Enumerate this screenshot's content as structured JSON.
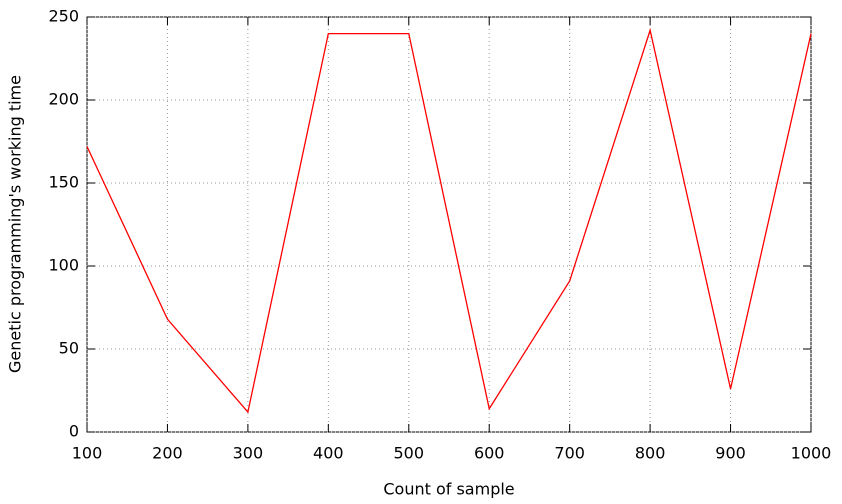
{
  "chart_data": {
    "type": "line",
    "x_label": "Count of sample",
    "y_label": "Genetic programming's working time",
    "x": [
      100,
      200,
      300,
      400,
      500,
      600,
      700,
      800,
      900,
      1000
    ],
    "series": [
      {
        "color": "#ff0000",
        "values": [
          172,
          68,
          12,
          240,
          240,
          14,
          91,
          242,
          26,
          240
        ]
      }
    ],
    "xlim": [
      100,
      1000
    ],
    "xticks": [
      100,
      200,
      300,
      400,
      500,
      600,
      700,
      800,
      900,
      1000
    ],
    "ylim": [
      0,
      250
    ],
    "yticks": [
      0,
      50,
      100,
      150,
      200,
      250
    ],
    "grid": true
  }
}
